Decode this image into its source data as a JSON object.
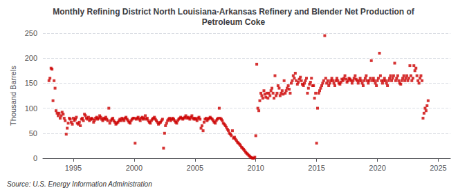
{
  "chart_data": {
    "type": "scatter",
    "title": "Monthly Refining District North Louisiana-Arkansas Refinery and Blender Net Production of\nPetroleum Coke",
    "ylabel": "Thousand Barrels",
    "annotations": [
      "Source: U.S. Energy Information Administration"
    ],
    "color": "#cc0000",
    "marker": "square",
    "grid": true,
    "xlim": [
      1992.5,
      2026.0
    ],
    "ylim": [
      0,
      250
    ],
    "xticks": [
      1995,
      2000,
      2005,
      2010,
      2015,
      2020,
      2025
    ],
    "yticks": [
      0,
      50,
      100,
      150,
      200,
      250
    ],
    "x": [
      1993.0,
      1993.08,
      1993.17,
      1993.25,
      1993.33,
      1993.42,
      1993.5,
      1993.58,
      1993.67,
      1993.75,
      1993.83,
      1993.92,
      1994.0,
      1994.08,
      1994.17,
      1994.25,
      1994.33,
      1994.42,
      1994.5,
      1994.58,
      1994.67,
      1994.75,
      1994.83,
      1994.92,
      1995.0,
      1995.08,
      1995.17,
      1995.25,
      1995.33,
      1995.42,
      1995.5,
      1995.58,
      1995.67,
      1995.75,
      1995.83,
      1995.92,
      1996.0,
      1996.08,
      1996.17,
      1996.25,
      1996.33,
      1996.42,
      1996.5,
      1996.58,
      1996.67,
      1996.75,
      1996.83,
      1996.92,
      1997.0,
      1997.08,
      1997.17,
      1997.25,
      1997.33,
      1997.42,
      1997.5,
      1997.58,
      1997.67,
      1997.75,
      1997.83,
      1997.92,
      1998.0,
      1998.08,
      1998.17,
      1998.25,
      1998.33,
      1998.42,
      1998.5,
      1998.58,
      1998.67,
      1998.75,
      1998.83,
      1998.92,
      1999.0,
      1999.08,
      1999.17,
      1999.25,
      1999.33,
      1999.42,
      1999.5,
      1999.58,
      1999.67,
      1999.75,
      1999.83,
      1999.92,
      2000.0,
      2000.08,
      2000.17,
      2000.25,
      2000.33,
      2000.42,
      2000.5,
      2000.58,
      2000.67,
      2000.75,
      2000.83,
      2000.92,
      2001.0,
      2001.08,
      2001.17,
      2001.25,
      2001.33,
      2001.42,
      2001.5,
      2001.58,
      2001.67,
      2001.75,
      2001.83,
      2001.92,
      2002.0,
      2002.08,
      2002.17,
      2002.25,
      2002.33,
      2002.42,
      2002.5,
      2002.58,
      2002.67,
      2002.75,
      2002.83,
      2002.92,
      2003.0,
      2003.08,
      2003.17,
      2003.25,
      2003.33,
      2003.42,
      2003.5,
      2003.58,
      2003.67,
      2003.75,
      2003.83,
      2003.92,
      2004.0,
      2004.08,
      2004.17,
      2004.25,
      2004.33,
      2004.42,
      2004.5,
      2004.58,
      2004.67,
      2004.75,
      2004.83,
      2004.92,
      2005.0,
      2005.08,
      2005.17,
      2005.25,
      2005.33,
      2005.42,
      2005.5,
      2005.58,
      2005.67,
      2005.75,
      2005.83,
      2005.92,
      2006.0,
      2006.08,
      2006.17,
      2006.25,
      2006.33,
      2006.42,
      2006.5,
      2006.58,
      2006.67,
      2006.75,
      2006.83,
      2006.92,
      2007.0,
      2007.08,
      2007.17,
      2007.25,
      2007.33,
      2007.42,
      2007.5,
      2007.58,
      2007.67,
      2007.75,
      2007.83,
      2007.92,
      2008.0,
      2008.08,
      2008.17,
      2008.25,
      2008.33,
      2008.42,
      2008.5,
      2008.58,
      2008.67,
      2008.75,
      2008.83,
      2008.92,
      2009.0,
      2009.08,
      2009.17,
      2009.25,
      2009.33,
      2009.42,
      2009.5,
      2009.58,
      2009.67,
      2009.75,
      2009.83,
      2009.92,
      2010.0,
      2010.08,
      2010.17,
      2010.25,
      2010.33,
      2010.42,
      2010.5,
      2010.58,
      2010.67,
      2010.75,
      2010.83,
      2010.92,
      2011.0,
      2011.08,
      2011.17,
      2011.25,
      2011.33,
      2011.42,
      2011.5,
      2011.58,
      2011.67,
      2011.75,
      2011.83,
      2011.92,
      2012.0,
      2012.08,
      2012.17,
      2012.25,
      2012.33,
      2012.42,
      2012.5,
      2012.58,
      2012.67,
      2012.75,
      2012.83,
      2012.92,
      2013.0,
      2013.08,
      2013.17,
      2013.25,
      2013.33,
      2013.42,
      2013.5,
      2013.58,
      2013.67,
      2013.75,
      2013.83,
      2013.92,
      2014.0,
      2014.08,
      2014.17,
      2014.25,
      2014.33,
      2014.42,
      2014.5,
      2014.58,
      2014.67,
      2014.75,
      2014.83,
      2014.92,
      2015.0,
      2015.08,
      2015.17,
      2015.25,
      2015.33,
      2015.42,
      2015.5,
      2015.58,
      2015.67,
      2015.75,
      2015.83,
      2015.92,
      2016.0,
      2016.08,
      2016.17,
      2016.25,
      2016.33,
      2016.42,
      2016.5,
      2016.58,
      2016.67,
      2016.75,
      2016.83,
      2016.92,
      2017.0,
      2017.08,
      2017.17,
      2017.25,
      2017.33,
      2017.42,
      2017.5,
      2017.58,
      2017.67,
      2017.75,
      2017.83,
      2017.92,
      2018.0,
      2018.08,
      2018.17,
      2018.25,
      2018.33,
      2018.42,
      2018.5,
      2018.58,
      2018.67,
      2018.75,
      2018.83,
      2018.92,
      2019.0,
      2019.08,
      2019.17,
      2019.25,
      2019.33,
      2019.42,
      2019.5,
      2019.58,
      2019.67,
      2019.75,
      2019.83,
      2019.92,
      2020.0,
      2020.08,
      2020.17,
      2020.25,
      2020.33,
      2020.42,
      2020.5,
      2020.58,
      2020.67,
      2020.75,
      2020.83,
      2020.92,
      2021.0,
      2021.08,
      2021.17,
      2021.25,
      2021.33,
      2021.42,
      2021.5,
      2021.58,
      2021.67,
      2021.75,
      2021.83,
      2021.92,
      2022.0,
      2022.08,
      2022.17,
      2022.25,
      2022.33,
      2022.42,
      2022.5,
      2022.58,
      2022.67,
      2022.75,
      2022.83,
      2022.92,
      2023.0,
      2023.08,
      2023.17,
      2023.25,
      2023.33,
      2023.42,
      2023.5,
      2023.58,
      2023.67,
      2023.75,
      2023.83,
      2023.92,
      2024.0,
      2024.08,
      2024.17
    ],
    "values": [
      155,
      160,
      180,
      178,
      115,
      155,
      140,
      95,
      90,
      85,
      90,
      80,
      85,
      92,
      88,
      80,
      75,
      48,
      60,
      70,
      80,
      78,
      72,
      68,
      80,
      75,
      78,
      82,
      70,
      68,
      72,
      65,
      78,
      80,
      75,
      88,
      85,
      80,
      78,
      82,
      75,
      78,
      80,
      78,
      72,
      76,
      80,
      82,
      78,
      80,
      85,
      82,
      78,
      75,
      80,
      78,
      82,
      78,
      75,
      100,
      70,
      75,
      78,
      80,
      75,
      72,
      68,
      70,
      72,
      75,
      78,
      75,
      80,
      78,
      75,
      80,
      82,
      78,
      75,
      72,
      70,
      75,
      78,
      80,
      80,
      30,
      78,
      80,
      82,
      78,
      75,
      80,
      82,
      78,
      80,
      85,
      78,
      80,
      75,
      72,
      70,
      75,
      78,
      80,
      82,
      78,
      75,
      72,
      68,
      70,
      72,
      75,
      78,
      20,
      50,
      65,
      70,
      75,
      78,
      80,
      75,
      78,
      80,
      78,
      75,
      72,
      70,
      75,
      78,
      80,
      82,
      80,
      78,
      80,
      82,
      85,
      80,
      82,
      80,
      78,
      82,
      85,
      80,
      78,
      80,
      78,
      75,
      80,
      82,
      78,
      60,
      65,
      55,
      72,
      78,
      80,
      75,
      78,
      80,
      82,
      80,
      78,
      75,
      72,
      70,
      75,
      78,
      80,
      100,
      80,
      78,
      75,
      70,
      68,
      65,
      62,
      58,
      55,
      50,
      48,
      45,
      55,
      40,
      42,
      38,
      35,
      32,
      30,
      28,
      25,
      22,
      20,
      18,
      15,
      12,
      10,
      8,
      6,
      4,
      2,
      1,
      0,
      0,
      2,
      45,
      188,
      100,
      95,
      115,
      130,
      125,
      120,
      135,
      128,
      122,
      130,
      120,
      130,
      125,
      135,
      140,
      130,
      120,
      165,
      125,
      130,
      145,
      140,
      125,
      130,
      135,
      128,
      155,
      130,
      135,
      140,
      145,
      138,
      130,
      150,
      155,
      165,
      160,
      170,
      155,
      148,
      152,
      158,
      162,
      155,
      148,
      145,
      150,
      155,
      160,
      130,
      140,
      148,
      152,
      160,
      145,
      145,
      120,
      130,
      30,
      100,
      130,
      135,
      140,
      145,
      150,
      155,
      245,
      160,
      150,
      155,
      145,
      150,
      155,
      160,
      155,
      150,
      145,
      155,
      160,
      155,
      150,
      148,
      152,
      158,
      155,
      160,
      165,
      158,
      152,
      155,
      160,
      158,
      155,
      150,
      155,
      160,
      165,
      158,
      155,
      150,
      155,
      160,
      155,
      150,
      145,
      155,
      160,
      165,
      155,
      150,
      155,
      160,
      195,
      155,
      160,
      155,
      150,
      145,
      155,
      160,
      210,
      165,
      155,
      150,
      155,
      160,
      155,
      150,
      145,
      155,
      160,
      165,
      155,
      160,
      165,
      190,
      155,
      160,
      165,
      155,
      150,
      148,
      155,
      160,
      165,
      155,
      160,
      165,
      155,
      160,
      185,
      165,
      155,
      160,
      185,
      175,
      180,
      165,
      155,
      150,
      160,
      165,
      155,
      80,
      90,
      100,
      95,
      105,
      115
    ]
  }
}
